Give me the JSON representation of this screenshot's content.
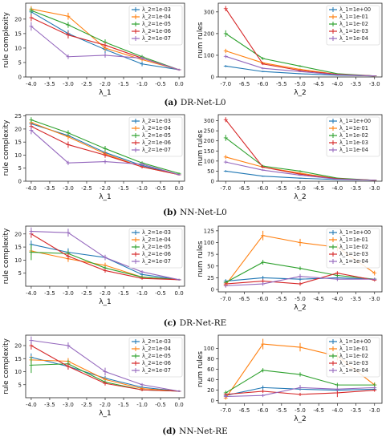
{
  "colors": {
    "blue": "#1f77b4",
    "orange": "#ff7f0e",
    "green": "#2ca02c",
    "red": "#d62728",
    "purple": "#9467bd"
  },
  "captions": [
    {
      "letter": "(a)",
      "text": "DR-Net-L0"
    },
    {
      "letter": "(b)",
      "text": "NN-Net-L0"
    },
    {
      "letter": "(c)",
      "text": "DR-Net-RE"
    },
    {
      "letter": "(d)",
      "text": "NN-Net-RE"
    }
  ],
  "chart_data": [
    {
      "id": "a-left",
      "type": "line",
      "xlabel": "λ_1",
      "ylabel": "rule complexity",
      "xlim": [
        -4.15,
        0.15
      ],
      "ylim": [
        0,
        25.5
      ],
      "xticks": [
        -4.0,
        -3.5,
        -3.0,
        -2.5,
        -2.0,
        -1.5,
        -1.0,
        -0.5,
        0.0
      ],
      "yticks": [
        0,
        5,
        10,
        15,
        20
      ],
      "legend_position": "top-right",
      "x": [
        -4,
        -3,
        -2,
        -1,
        0
      ],
      "series": [
        {
          "name": "λ_2=1e-03",
          "color": "blue",
          "values": [
            22.5,
            15.0,
            9.5,
            4.5,
            2.5
          ],
          "err": [
            1.0,
            1.2,
            1.5,
            0.8,
            0.3
          ]
        },
        {
          "name": "λ_2=1e-04",
          "color": "orange",
          "values": [
            23.5,
            21.0,
            10.0,
            6.0,
            2.5
          ],
          "err": [
            1.0,
            1.2,
            1.0,
            0.6,
            0.3
          ]
        },
        {
          "name": "λ_2=1e-05",
          "color": "green",
          "values": [
            23.0,
            18.0,
            12.0,
            7.0,
            2.5
          ],
          "err": [
            1.0,
            1.0,
            1.0,
            0.6,
            0.3
          ]
        },
        {
          "name": "λ_2=1e-06",
          "color": "red",
          "values": [
            20.5,
            14.5,
            11.0,
            6.5,
            2.5
          ],
          "err": [
            1.2,
            1.2,
            1.0,
            0.6,
            0.3
          ]
        },
        {
          "name": "λ_2=1e-07",
          "color": "purple",
          "values": [
            17.5,
            7.0,
            7.5,
            6.5,
            2.5
          ],
          "err": [
            1.5,
            0.8,
            0.8,
            0.6,
            0.3
          ]
        }
      ]
    },
    {
      "id": "a-right",
      "type": "line",
      "xlabel": "λ_2",
      "ylabel": "num rules",
      "xlim": [
        -7.2,
        -2.8
      ],
      "ylim": [
        0,
        340
      ],
      "xticks": [
        -7.0,
        -6.5,
        -6.0,
        -5.5,
        -5.0,
        -4.5,
        -4.0,
        -3.5,
        -3.0
      ],
      "yticks": [
        0,
        100,
        200,
        300
      ],
      "legend_position": "top-right",
      "x": [
        -7,
        -6,
        -5,
        -4,
        -3
      ],
      "series": [
        {
          "name": "λ_1=1e+00",
          "color": "blue",
          "values": [
            50,
            25,
            15,
            8,
            5
          ],
          "err": [
            5,
            3,
            2,
            2,
            1
          ]
        },
        {
          "name": "λ_1=1e-01",
          "color": "orange",
          "values": [
            120,
            65,
            35,
            12,
            5
          ],
          "err": [
            10,
            5,
            4,
            2,
            1
          ]
        },
        {
          "name": "λ_1=1e-02",
          "color": "green",
          "values": [
            200,
            85,
            50,
            15,
            5
          ],
          "err": [
            15,
            6,
            4,
            2,
            1
          ]
        },
        {
          "name": "λ_1=1e-03",
          "color": "red",
          "values": [
            315,
            60,
            30,
            12,
            5
          ],
          "err": [
            12,
            5,
            3,
            2,
            1
          ]
        },
        {
          "name": "λ_1=1e-04",
          "color": "purple",
          "values": [
            95,
            40,
            25,
            10,
            5
          ],
          "err": [
            8,
            4,
            3,
            2,
            1
          ]
        }
      ]
    },
    {
      "id": "b-left",
      "type": "line",
      "xlabel": "λ_1",
      "ylabel": "rule complexity",
      "xlim": [
        -4.15,
        0.15
      ],
      "ylim": [
        0,
        25.5
      ],
      "xticks": [
        -4.0,
        -3.5,
        -3.0,
        -2.5,
        -2.0,
        -1.5,
        -1.0,
        -0.5,
        0.0
      ],
      "yticks": [
        0,
        5,
        10,
        15,
        20,
        25
      ],
      "legend_position": "top-right",
      "x": [
        -4,
        -3,
        -2,
        -1,
        0
      ],
      "series": [
        {
          "name": "λ_2=1e-03",
          "color": "blue",
          "values": [
            22.0,
            17.5,
            11.0,
            6.0,
            2.5
          ],
          "err": [
            1.0,
            1.0,
            1.0,
            0.6,
            0.3
          ]
        },
        {
          "name": "λ_2=1e-04",
          "color": "orange",
          "values": [
            22.5,
            17.0,
            10.5,
            5.5,
            2.5
          ],
          "err": [
            1.0,
            1.0,
            1.0,
            0.6,
            0.3
          ]
        },
        {
          "name": "λ_2=1e-05",
          "color": "green",
          "values": [
            23.5,
            18.5,
            12.5,
            7.0,
            3.0
          ],
          "err": [
            1.0,
            1.0,
            1.0,
            0.6,
            0.3
          ]
        },
        {
          "name": "λ_2=1e-06",
          "color": "red",
          "values": [
            21.0,
            14.0,
            10.0,
            5.5,
            2.5
          ],
          "err": [
            1.2,
            1.2,
            1.0,
            0.6,
            0.3
          ]
        },
        {
          "name": "λ_2=1e-07",
          "color": "purple",
          "values": [
            19.5,
            7.0,
            7.5,
            6.5,
            2.5
          ],
          "err": [
            1.5,
            0.8,
            0.8,
            0.6,
            0.3
          ]
        }
      ]
    },
    {
      "id": "b-right",
      "type": "line",
      "xlabel": "λ_2",
      "ylabel": "num rules",
      "xlim": [
        -7.2,
        -2.8
      ],
      "ylim": [
        0,
        330
      ],
      "xticks": [
        -7.0,
        -6.5,
        -6.0,
        -5.5,
        -5.0,
        -4.5,
        -4.0,
        -3.5,
        -3.0
      ],
      "yticks": [
        0,
        50,
        100,
        150,
        200,
        250,
        300
      ],
      "legend_position": "top-right",
      "x": [
        -7,
        -6,
        -5,
        -4,
        -3
      ],
      "series": [
        {
          "name": "λ_1=1e+00",
          "color": "blue",
          "values": [
            50,
            25,
            15,
            8,
            5
          ],
          "err": [
            5,
            3,
            2,
            2,
            1
          ]
        },
        {
          "name": "λ_1=1e-01",
          "color": "orange",
          "values": [
            120,
            70,
            40,
            12,
            5
          ],
          "err": [
            10,
            5,
            4,
            2,
            1
          ]
        },
        {
          "name": "λ_1=1e-02",
          "color": "green",
          "values": [
            215,
            75,
            50,
            15,
            5
          ],
          "err": [
            15,
            6,
            4,
            2,
            1
          ]
        },
        {
          "name": "λ_1=1e-03",
          "color": "red",
          "values": [
            305,
            70,
            35,
            12,
            5
          ],
          "err": [
            12,
            5,
            3,
            2,
            1
          ]
        },
        {
          "name": "λ_1=1e-04",
          "color": "purple",
          "values": [
            95,
            55,
            30,
            10,
            5
          ],
          "err": [
            8,
            4,
            3,
            2,
            1
          ]
        }
      ]
    },
    {
      "id": "c-left",
      "type": "line",
      "xlabel": "λ_1",
      "ylabel": "rule complexity",
      "xlim": [
        -4.15,
        0.15
      ],
      "ylim": [
        0,
        23
      ],
      "xticks": [
        -4.0,
        -3.5,
        -3.0,
        -2.5,
        -2.0,
        -1.5,
        -1.0,
        -0.5,
        0.0
      ],
      "yticks": [
        5,
        10,
        15,
        20
      ],
      "legend_position": "top-right",
      "x": [
        -4,
        -3,
        -2,
        -1,
        0
      ],
      "series": [
        {
          "name": "λ_2=1e-03",
          "color": "blue",
          "values": [
            16.0,
            13.0,
            11.0,
            4.5,
            2.5
          ],
          "err": [
            1.5,
            1.5,
            1.0,
            0.6,
            0.3
          ]
        },
        {
          "name": "λ_2=1e-04",
          "color": "orange",
          "values": [
            13.5,
            10.5,
            8.0,
            3.5,
            2.5
          ],
          "err": [
            1.5,
            1.2,
            1.0,
            0.6,
            0.3
          ]
        },
        {
          "name": "λ_2=1e-05",
          "color": "green",
          "values": [
            13.0,
            12.5,
            7.0,
            3.5,
            2.5
          ],
          "err": [
            3.0,
            1.2,
            0.8,
            0.6,
            0.3
          ]
        },
        {
          "name": "λ_2=1e-06",
          "color": "red",
          "values": [
            20.0,
            11.5,
            6.0,
            3.0,
            2.5
          ],
          "err": [
            1.5,
            1.2,
            0.8,
            0.5,
            0.3
          ]
        },
        {
          "name": "λ_2=1e-07",
          "color": "purple",
          "values": [
            21.0,
            20.5,
            11.0,
            5.5,
            2.5
          ],
          "err": [
            1.5,
            1.5,
            1.0,
            0.6,
            0.3
          ]
        }
      ]
    },
    {
      "id": "c-right",
      "type": "line",
      "xlabel": "λ_2",
      "ylabel": "num rules",
      "xlim": [
        -7.2,
        -2.8
      ],
      "ylim": [
        -5,
        135
      ],
      "xticks": [
        -7.0,
        -6.5,
        -6.0,
        -5.5,
        -5.0,
        -4.5,
        -4.0,
        -3.5,
        -3.0
      ],
      "yticks": [
        0,
        25,
        50,
        75,
        100,
        125
      ],
      "legend_position": "top-right",
      "x": [
        -7,
        -6,
        -5,
        -4,
        -3
      ],
      "series": [
        {
          "name": "λ_1=1e+00",
          "color": "blue",
          "values": [
            18,
            25,
            22,
            25,
            22
          ],
          "err": [
            4,
            4,
            4,
            4,
            3
          ]
        },
        {
          "name": "λ_1=1e-01",
          "color": "orange",
          "values": [
            10,
            115,
            100,
            90,
            35
          ],
          "err": [
            5,
            10,
            8,
            8,
            5
          ]
        },
        {
          "name": "λ_1=1e-02",
          "color": "green",
          "values": [
            15,
            58,
            45,
            30,
            22
          ],
          "err": [
            4,
            5,
            4,
            4,
            3
          ]
        },
        {
          "name": "λ_1=1e-03",
          "color": "red",
          "values": [
            12,
            18,
            12,
            35,
            20
          ],
          "err": [
            4,
            4,
            4,
            4,
            3
          ]
        },
        {
          "name": "λ_1=1e-04",
          "color": "purple",
          "values": [
            8,
            12,
            28,
            22,
            22
          ],
          "err": [
            4,
            4,
            5,
            4,
            3
          ]
        }
      ]
    },
    {
      "id": "d-left",
      "type": "line",
      "xlabel": "λ_1",
      "ylabel": "rule complexity",
      "xlim": [
        -4.15,
        0.15
      ],
      "ylim": [
        0,
        24
      ],
      "xticks": [
        -4.0,
        -3.5,
        -3.0,
        -2.5,
        -2.0,
        -1.5,
        -1.0,
        -0.5,
        0.0
      ],
      "yticks": [
        5,
        10,
        15,
        20
      ],
      "legend_position": "top-right",
      "x": [
        -4,
        -3,
        -2,
        -1,
        0
      ],
      "series": [
        {
          "name": "λ_2=1e-03",
          "color": "blue",
          "values": [
            15.5,
            12.0,
            7.5,
            4.0,
            2.5
          ],
          "err": [
            1.5,
            1.2,
            0.8,
            0.6,
            0.3
          ]
        },
        {
          "name": "λ_2=1e-04",
          "color": "orange",
          "values": [
            14.5,
            14.0,
            7.0,
            3.5,
            2.5
          ],
          "err": [
            1.5,
            1.2,
            0.8,
            0.6,
            0.3
          ]
        },
        {
          "name": "λ_2=1e-05",
          "color": "green",
          "values": [
            12.5,
            13.0,
            6.0,
            3.0,
            2.5
          ],
          "err": [
            3.0,
            1.5,
            0.8,
            0.5,
            0.3
          ]
        },
        {
          "name": "λ_2=1e-06",
          "color": "red",
          "values": [
            20.0,
            12.0,
            5.5,
            3.0,
            2.5
          ],
          "err": [
            1.5,
            1.2,
            0.8,
            0.5,
            0.3
          ]
        },
        {
          "name": "λ_2=1e-07",
          "color": "purple",
          "values": [
            22.0,
            20.0,
            10.0,
            5.0,
            2.5
          ],
          "err": [
            1.5,
            1.2,
            1.5,
            0.6,
            0.3
          ]
        }
      ]
    },
    {
      "id": "d-right",
      "type": "line",
      "xlabel": "λ_2",
      "ylabel": "num rules",
      "xlim": [
        -7.2,
        -2.8
      ],
      "ylim": [
        -5,
        125
      ],
      "xticks": [
        -7.0,
        -6.5,
        -6.0,
        -5.5,
        -5.0,
        -4.5,
        -4.0,
        -3.5,
        -3.0
      ],
      "yticks": [
        0,
        20,
        40,
        60,
        80,
        100
      ],
      "legend_position": "top-right",
      "x": [
        -7,
        -6,
        -5,
        -4,
        -3
      ],
      "series": [
        {
          "name": "λ_1=1e+00",
          "color": "blue",
          "values": [
            10,
            25,
            22,
            20,
            22
          ],
          "err": [
            3,
            4,
            3,
            3,
            3
          ]
        },
        {
          "name": "λ_1=1e-01",
          "color": "orange",
          "values": [
            5,
            108,
            102,
            85,
            30
          ],
          "err": [
            3,
            10,
            8,
            8,
            5
          ]
        },
        {
          "name": "λ_1=1e-02",
          "color": "green",
          "values": [
            15,
            58,
            50,
            30,
            30
          ],
          "err": [
            4,
            4,
            4,
            4,
            4
          ]
        },
        {
          "name": "λ_1=1e-03",
          "color": "red",
          "values": [
            12,
            18,
            12,
            15,
            20
          ],
          "err": [
            3,
            3,
            3,
            8,
            3
          ]
        },
        {
          "name": "λ_1=1e-04",
          "color": "purple",
          "values": [
            8,
            10,
            25,
            22,
            25
          ],
          "err": [
            3,
            3,
            5,
            4,
            3
          ]
        }
      ]
    }
  ]
}
